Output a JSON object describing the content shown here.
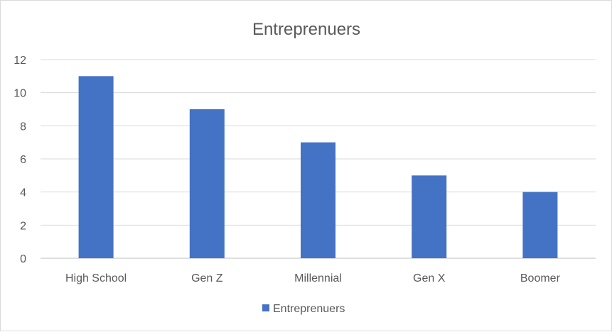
{
  "chart_data": {
    "type": "bar",
    "title": "Entreprenuers",
    "categories": [
      "High School",
      "Gen Z",
      "Millennial",
      "Gen X",
      "Boomer"
    ],
    "series": [
      {
        "name": "Entreprenuers",
        "values": [
          11,
          9,
          7,
          5,
          4
        ],
        "color": "#4472c4"
      }
    ],
    "ylim": [
      0,
      12
    ],
    "yticks": [
      "0",
      "2",
      "4",
      "6",
      "8",
      "10",
      "12"
    ],
    "grid": true,
    "legend_position": "bottom",
    "gridline_color": "#d9d9d9",
    "axis_color": "#bfbfbf"
  }
}
